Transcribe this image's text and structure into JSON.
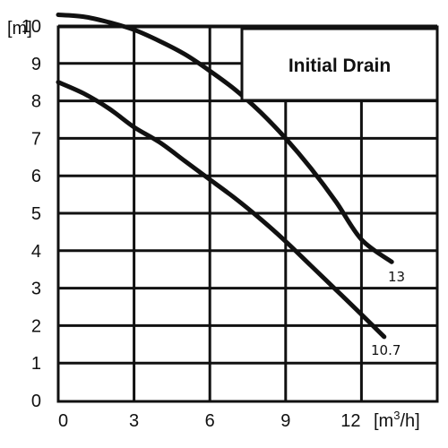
{
  "chart_data": {
    "type": "line",
    "title": "Initial Drain",
    "ylabel": "[m]",
    "xlabel": "[m³/h]",
    "xlim": [
      0,
      15
    ],
    "ylim": [
      0,
      10.5
    ],
    "x_ticks": [
      "0",
      "3",
      "6",
      "9",
      "12"
    ],
    "y_ticks": [
      "0",
      "1",
      "2",
      "3",
      "4",
      "5",
      "6",
      "7",
      "8",
      "9",
      "10"
    ],
    "grid": true,
    "series": [
      {
        "name": "13",
        "x": [
          0,
          1,
          2,
          3,
          4,
          5,
          6,
          7,
          8,
          9,
          10,
          11,
          12,
          13.2
        ],
        "y": [
          10.3,
          10.25,
          10.1,
          9.9,
          9.6,
          9.25,
          8.8,
          8.3,
          7.7,
          7.0,
          6.2,
          5.3,
          4.3,
          3.7
        ]
      },
      {
        "name": "10.7",
        "x": [
          0,
          1,
          2,
          3,
          4,
          5,
          6,
          7,
          8,
          9,
          10,
          11,
          12,
          12.9
        ],
        "y": [
          8.5,
          8.2,
          7.8,
          7.3,
          6.9,
          6.4,
          5.9,
          5.4,
          4.85,
          4.25,
          3.6,
          2.95,
          2.3,
          1.7
        ]
      }
    ],
    "annotations": [
      "13",
      "10.7"
    ]
  }
}
